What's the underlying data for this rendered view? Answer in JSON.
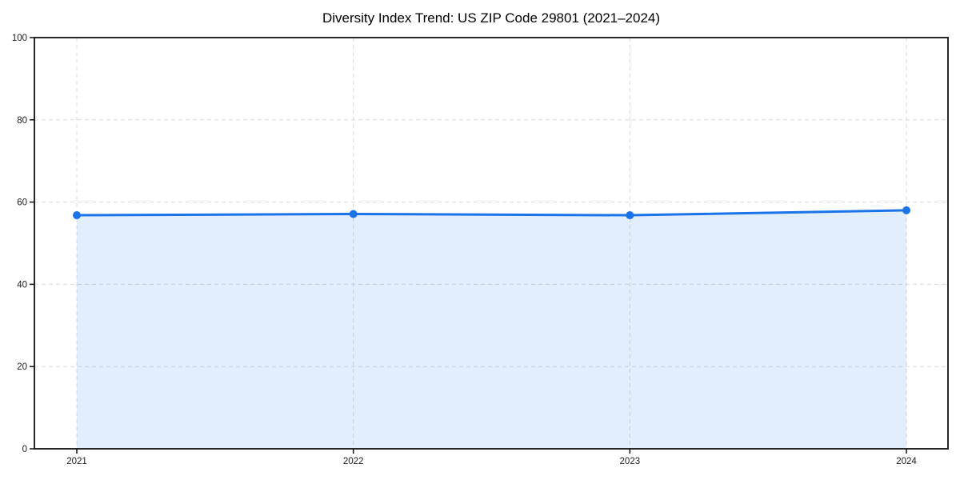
{
  "title": "Diversity Index Trend: US ZIP Code 29801 (2021–2024)",
  "chart_data": {
    "type": "line",
    "title": "Diversity Index Trend: US ZIP Code 29801 (2021–2024)",
    "x": [
      "2021",
      "2022",
      "2023",
      "2024"
    ],
    "series": [
      {
        "name": "Diversity Index",
        "values": [
          56.8,
          57.1,
          56.8,
          58.0
        ]
      }
    ],
    "xlabel": "",
    "ylabel": "",
    "ylim": [
      0,
      100
    ],
    "yticks": [
      0,
      20,
      40,
      60,
      80,
      100
    ],
    "grid": true,
    "grid_style": "dashed",
    "legend": "none",
    "area_fill": true,
    "marker": "circle",
    "colors": {
      "line": "#1a73e8",
      "marker": "#1a73e8",
      "fill": "rgba(26,115,232,0.12)",
      "grid": "#d9d9d9",
      "spine": "#111111",
      "tick_text": "#1a1a1a",
      "background": "#ffffff"
    }
  }
}
